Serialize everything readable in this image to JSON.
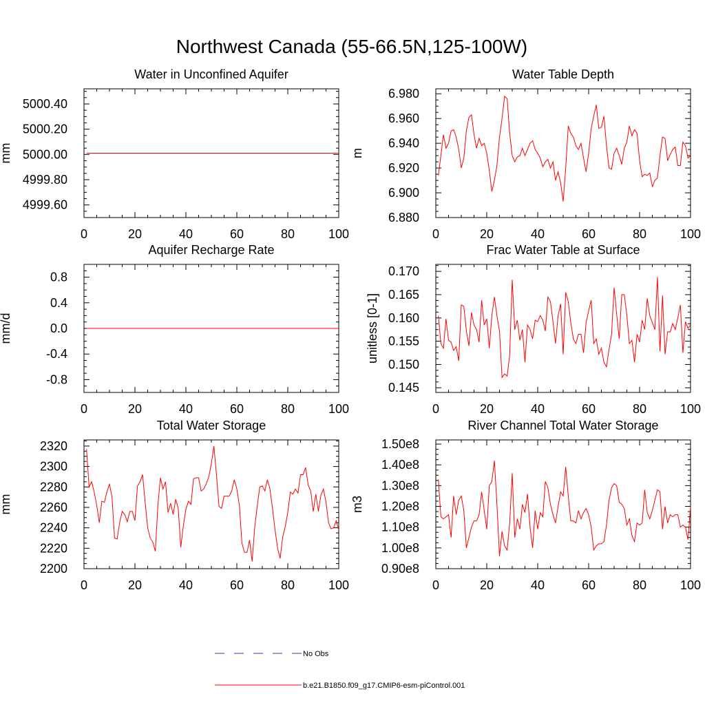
{
  "title": "Northwest Canada (55-66.5N,125-100W)",
  "colors": {
    "model": "#ff0000",
    "obs": "#3333aa",
    "axis": "#000000"
  },
  "legend": {
    "obs_label": "No Obs",
    "model_label": "b.e21.B1850.f09_g17.CMIP6-esm-piControl.001"
  },
  "chart_data": [
    {
      "type": "line",
      "title": "Water in Unconfined Aquifer",
      "xlabel": "",
      "ylabel": "mm",
      "xlim": [
        0,
        100
      ],
      "ylim": [
        4999.5,
        5000.52
      ],
      "xticks": [
        0,
        20,
        40,
        60,
        80,
        100
      ],
      "yticks": [
        4999.6,
        4999.8,
        5000.0,
        5000.2,
        5000.4
      ],
      "ytick_labels": [
        "4999.60",
        "4999.80",
        "5000.00",
        "5000.20",
        "5000.40"
      ],
      "x_start": 1,
      "series": [
        {
          "name": "b.e21.B1850.f09_g17.CMIP6-esm-piControl.001",
          "values": [
            5000.01,
            5000.01,
            5000.01,
            5000.01,
            5000.01,
            5000.01,
            5000.01,
            5000.01,
            5000.01,
            5000.01,
            5000.01,
            5000.01,
            5000.01,
            5000.01,
            5000.01,
            5000.01,
            5000.01,
            5000.01,
            5000.01,
            5000.01,
            5000.01,
            5000.01,
            5000.01,
            5000.01,
            5000.01,
            5000.01,
            5000.01,
            5000.01,
            5000.01,
            5000.01,
            5000.01,
            5000.01,
            5000.01,
            5000.01,
            5000.01,
            5000.01,
            5000.01,
            5000.01,
            5000.01,
            5000.01,
            5000.01,
            5000.01,
            5000.01,
            5000.01,
            5000.01,
            5000.01,
            5000.01,
            5000.01,
            5000.01,
            5000.01,
            5000.01,
            5000.01,
            5000.01,
            5000.01,
            5000.01,
            5000.01,
            5000.01,
            5000.01,
            5000.01,
            5000.01,
            5000.01,
            5000.01,
            5000.01,
            5000.01,
            5000.01,
            5000.01,
            5000.01,
            5000.01,
            5000.01,
            5000.01,
            5000.01,
            5000.01,
            5000.01,
            5000.01,
            5000.01,
            5000.01,
            5000.01,
            5000.01,
            5000.01,
            5000.01,
            5000.01,
            5000.01,
            5000.01,
            5000.01,
            5000.01,
            5000.01,
            5000.01,
            5000.01,
            5000.01,
            5000.01,
            5000.01,
            5000.01,
            5000.01,
            5000.01,
            5000.01,
            5000.01,
            5000.01,
            5000.01,
            5000.01,
            5000.01
          ]
        }
      ]
    },
    {
      "type": "line",
      "title": "Water Table Depth",
      "xlabel": "",
      "ylabel": "m",
      "xlim": [
        0,
        100
      ],
      "ylim": [
        6.88,
        6.984
      ],
      "xticks": [
        0,
        20,
        40,
        60,
        80,
        100
      ],
      "yticks": [
        6.88,
        6.9,
        6.92,
        6.94,
        6.96,
        6.98
      ],
      "ytick_labels": [
        "6.880",
        "6.900",
        "6.920",
        "6.940",
        "6.960",
        "6.980"
      ],
      "x_start": 1,
      "series": [
        {
          "name": "b.e21.B1850.f09_g17.CMIP6-esm-piControl.001",
          "values": [
            6.914,
            6.93,
            6.947,
            6.936,
            6.94,
            6.95,
            6.951,
            6.945,
            6.935,
            6.92,
            6.928,
            6.95,
            6.961,
            6.963,
            6.947,
            6.936,
            6.944,
            6.938,
            6.94,
            6.932,
            6.918,
            6.901,
            6.91,
            6.922,
            6.945,
            6.96,
            6.978,
            6.976,
            6.948,
            6.93,
            6.925,
            6.929,
            6.93,
            6.936,
            6.93,
            6.935,
            6.94,
            6.942,
            6.935,
            6.932,
            6.928,
            6.921,
            6.925,
            6.927,
            6.92,
            6.925,
            6.91,
            6.917,
            6.908,
            6.893,
            6.92,
            6.954,
            6.948,
            6.945,
            6.938,
            6.935,
            6.94,
            6.928,
            6.917,
            6.932,
            6.952,
            6.962,
            6.971,
            6.952,
            6.953,
            6.962,
            6.938,
            6.92,
            6.919,
            6.932,
            6.936,
            6.93,
            6.923,
            6.936,
            6.941,
            6.954,
            6.946,
            6.951,
            6.948,
            6.926,
            6.913,
            6.915,
            6.914,
            6.916,
            6.905,
            6.91,
            6.912,
            6.93,
            6.945,
            6.944,
            6.926,
            6.931,
            6.935,
            6.937,
            6.922,
            6.922,
            6.941,
            6.938,
            6.928,
            6.93
          ]
        }
      ]
    },
    {
      "type": "line",
      "title": "Aquifer Recharge Rate",
      "xlabel": "",
      "ylabel": "mm/d",
      "xlim": [
        0,
        100
      ],
      "ylim": [
        -1.0,
        1.0
      ],
      "xticks": [
        0,
        20,
        40,
        60,
        80,
        100
      ],
      "yticks": [
        -0.8,
        -0.4,
        0.0,
        0.4,
        0.8
      ],
      "ytick_labels": [
        "-0.8",
        "-0.4",
        "0.0",
        "0.4",
        "0.8"
      ],
      "x_start": 1,
      "series": [
        {
          "name": "b.e21.B1850.f09_g17.CMIP6-esm-piControl.001",
          "values": [
            0,
            0,
            0,
            0,
            0,
            0,
            0,
            0,
            0,
            0,
            0,
            0,
            0,
            0,
            0,
            0,
            0,
            0,
            0,
            0,
            0,
            0,
            0,
            0,
            0,
            0,
            0,
            0,
            0,
            0,
            0,
            0,
            0,
            0,
            0,
            0,
            0,
            0,
            0,
            0,
            0,
            0,
            0,
            0,
            0,
            0,
            0,
            0,
            0,
            0,
            0,
            0,
            0,
            0,
            0,
            0,
            0,
            0,
            0,
            0,
            0,
            0,
            0,
            0,
            0,
            0,
            0,
            0,
            0,
            0,
            0,
            0,
            0,
            0,
            0,
            0,
            0,
            0,
            0,
            0,
            0,
            0,
            0,
            0,
            0,
            0,
            0,
            0,
            0,
            0,
            0,
            0,
            0,
            0,
            0,
            0,
            0,
            0,
            0,
            0
          ]
        }
      ]
    },
    {
      "type": "line",
      "title": "Frac Water Table at Surface",
      "xlabel": "",
      "ylabel": "unitless [0-1]",
      "xlim": [
        0,
        100
      ],
      "ylim": [
        0.144,
        0.1715
      ],
      "xticks": [
        0,
        20,
        40,
        60,
        80,
        100
      ],
      "yticks": [
        0.145,
        0.15,
        0.155,
        0.16,
        0.165,
        0.17
      ],
      "ytick_labels": [
        "0.145",
        "0.150",
        "0.155",
        "0.160",
        "0.165",
        "0.170"
      ],
      "x_start": 1,
      "series": [
        {
          "name": "b.e21.B1850.f09_g17.CMIP6-esm-piControl.001",
          "values": [
            0.1605,
            0.1545,
            0.1535,
            0.1598,
            0.1552,
            0.1548,
            0.153,
            0.1538,
            0.1508,
            0.1628,
            0.1625,
            0.1572,
            0.154,
            0.1612,
            0.1585,
            0.1575,
            0.1548,
            0.1638,
            0.1585,
            0.1598,
            0.1535,
            0.1605,
            0.1645,
            0.1605,
            0.1572,
            0.1472,
            0.148,
            0.1475,
            0.152,
            0.1682,
            0.1575,
            0.1595,
            0.1552,
            0.1575,
            0.1505,
            0.1585,
            0.1575,
            0.1555,
            0.1595,
            0.1592,
            0.1605,
            0.1595,
            0.1572,
            0.1645,
            0.1635,
            0.1592,
            0.1545,
            0.1605,
            0.163,
            0.1522,
            0.1655,
            0.1635,
            0.159,
            0.1555,
            0.1545,
            0.1565,
            0.1565,
            0.1525,
            0.159,
            0.1615,
            0.1638,
            0.1545,
            0.1555,
            0.1522,
            0.1535,
            0.1505,
            0.1495,
            0.1532,
            0.1565,
            0.1665,
            0.1608,
            0.1555,
            0.165,
            0.165,
            0.1605,
            0.1545,
            0.1552,
            0.1505,
            0.1565,
            0.1548,
            0.1595,
            0.1575,
            0.1642,
            0.1605,
            0.159,
            0.1575,
            0.1688,
            0.1528,
            0.1648,
            0.1522,
            0.157,
            0.157,
            0.1588,
            0.1575,
            0.16,
            0.1628,
            0.1525,
            0.1592,
            0.1578,
            0.1585
          ]
        }
      ]
    },
    {
      "type": "line",
      "title": "Total Water Storage",
      "xlabel": "",
      "ylabel": "mm",
      "xlim": [
        0,
        100
      ],
      "ylim": [
        2200,
        2326
      ],
      "xticks": [
        0,
        20,
        40,
        60,
        80,
        100
      ],
      "yticks": [
        2200,
        2220,
        2240,
        2260,
        2280,
        2300,
        2320
      ],
      "ytick_labels": [
        "2200",
        "2220",
        "2240",
        "2260",
        "2280",
        "2300",
        "2320"
      ],
      "x_start": 1,
      "series": [
        {
          "name": "b.e21.B1850.f09_g17.CMIP6-esm-piControl.001",
          "values": [
            2317,
            2280,
            2285,
            2275,
            2262,
            2245,
            2266,
            2265,
            2275,
            2283,
            2270,
            2230,
            2229,
            2245,
            2256,
            2253,
            2246,
            2256,
            2256,
            2247,
            2281,
            2285,
            2292,
            2265,
            2240,
            2230,
            2226,
            2217,
            2262,
            2289,
            2278,
            2285,
            2255,
            2264,
            2253,
            2268,
            2259,
            2221,
            2242,
            2258,
            2266,
            2263,
            2288,
            2289,
            2289,
            2276,
            2278,
            2283,
            2290,
            2303,
            2320,
            2292,
            2261,
            2259,
            2271,
            2271,
            2271,
            2276,
            2287,
            2278,
            2262,
            2225,
            2216,
            2216,
            2228,
            2207,
            2240,
            2261,
            2280,
            2281,
            2276,
            2287,
            2278,
            2259,
            2238,
            2220,
            2210,
            2231,
            2241,
            2255,
            2275,
            2273,
            2278,
            2274,
            2292,
            2292,
            2299,
            2282,
            2276,
            2256,
            2273,
            2256,
            2272,
            2278,
            2265,
            2245,
            2239,
            2240,
            2247,
            2238
          ]
        }
      ]
    },
    {
      "type": "line",
      "title": "River Channel Total Water Storage",
      "xlabel": "",
      "ylabel": "m3",
      "xlim": [
        0,
        100
      ],
      "ylim": [
        90000000.0,
        152000000.0
      ],
      "xticks": [
        0,
        20,
        40,
        60,
        80,
        100
      ],
      "yticks": [
        90000000.0,
        100000000.0,
        110000000.0,
        120000000.0,
        130000000.0,
        140000000.0,
        150000000.0
      ],
      "ytick_labels": [
        "0.90e8",
        "1.00e8",
        "1.10e8",
        "1.20e8",
        "1.30e8",
        "1.40e8",
        "1.50e8"
      ],
      "x_start": 1,
      "series": [
        {
          "name": "b.e21.B1850.f09_g17.CMIP6-esm-piControl.001",
          "values": [
            133000000.0,
            115000000.0,
            114000000.0,
            115000000.0,
            116000000.0,
            105000000.0,
            125000000.0,
            116000000.0,
            123000000.0,
            125000000.0,
            118000000.0,
            100000000.0,
            105000000.0,
            110000000.0,
            113000000.0,
            113000000.0,
            116000000.0,
            127000000.0,
            118000000.0,
            109000000.0,
            130000000.0,
            132000000.0,
            142000000.0,
            121000000.0,
            96000000.0,
            108000000.0,
            101000000.0,
            99000000.0,
            112000000.0,
            136000000.0,
            105000000.0,
            114000000.0,
            109000000.0,
            121000000.0,
            117000000.0,
            126000000.0,
            110000000.0,
            100000000.0,
            118000000.0,
            109000000.0,
            117000000.0,
            115000000.0,
            132000000.0,
            129000000.0,
            121000000.0,
            116000000.0,
            112000000.0,
            120000000.0,
            127000000.0,
            125000000.0,
            139000000.0,
            125000000.0,
            113000000.0,
            113000000.0,
            112000000.0,
            118000000.0,
            114000000.0,
            117000000.0,
            119000000.0,
            116000000.0,
            110000000.0,
            99000000.0,
            101000000.0,
            102000000.0,
            102000000.0,
            103000000.0,
            111000000.0,
            123000000.0,
            129000000.0,
            131000000.0,
            130000000.0,
            122000000.0,
            121000000.0,
            119000000.0,
            111000000.0,
            114000000.0,
            106000000.0,
            103000000.0,
            112000000.0,
            111000000.0,
            112000000.0,
            128000000.0,
            117000000.0,
            114000000.0,
            118000000.0,
            123000000.0,
            128000000.0,
            127000000.0,
            109000000.0,
            120000000.0,
            112000000.0,
            116000000.0,
            115000000.0,
            116000000.0,
            116000000.0,
            110000000.0,
            111000000.0,
            110000000.0,
            104000000.0,
            120000000.0
          ]
        }
      ]
    }
  ]
}
